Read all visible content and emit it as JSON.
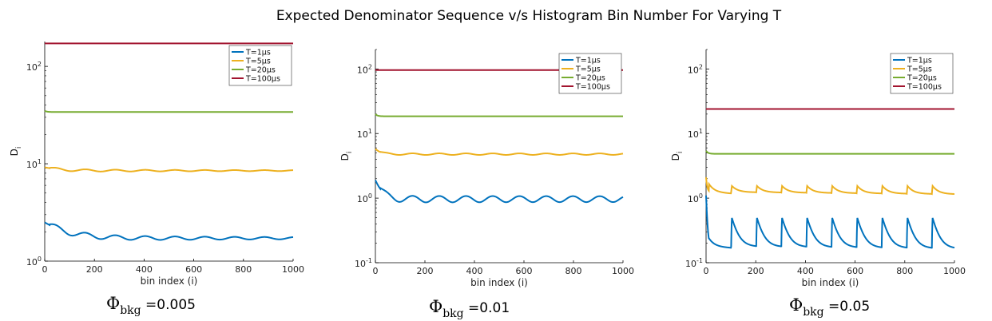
{
  "figure_title": "Expected Denominator Sequence v/s Histogram Bin Number For Varying T",
  "colors": {
    "T1": "#0072BD",
    "T5": "#EDB120",
    "T20": "#77AC30",
    "T100": "#A2142F"
  },
  "chart_data": [
    {
      "type": "line",
      "title": "",
      "xlabel": "bin index (i)",
      "ylabel": "D",
      "ylabel_sub": "i",
      "yscale": "log",
      "xlim": [
        0,
        1000
      ],
      "ylim": [
        1,
        180
      ],
      "xticks": [
        "0",
        "200",
        "400",
        "600",
        "800",
        "1000"
      ],
      "yticks": [
        {
          "base": "10",
          "exp": "0",
          "value": 1
        },
        {
          "base": "10",
          "exp": "1",
          "value": 10
        },
        {
          "base": "10",
          "exp": "2",
          "value": 100
        }
      ],
      "legend_position": "top-right",
      "caption": {
        "phi": "Φ",
        "sub": "bkg",
        "value": " =0.005"
      },
      "series": [
        {
          "name": "T=1μs",
          "color_key": "T1",
          "kind": "damped",
          "base": 1.72,
          "start": 2.5,
          "decay": 90,
          "amp": 0.06,
          "period": 120
        },
        {
          "name": "T=5μs",
          "color_key": "T5",
          "kind": "damped",
          "base": 8.5,
          "start": 9.2,
          "decay": 60,
          "amp": 0.025,
          "period": 120
        },
        {
          "name": "T=20μs",
          "color_key": "T20",
          "kind": "flat",
          "base": 34,
          "start": 35
        },
        {
          "name": "T=100μs",
          "color_key": "T100",
          "kind": "flat",
          "base": 172,
          "start": 172
        }
      ]
    },
    {
      "type": "line",
      "title": "",
      "xlabel": "bin index (i)",
      "ylabel": "D",
      "ylabel_sub": "i",
      "yscale": "log",
      "xlim": [
        0,
        1000
      ],
      "ylim": [
        0.1,
        200
      ],
      "xticks": [
        "0",
        "200",
        "400",
        "600",
        "800",
        "1000"
      ],
      "yticks": [
        {
          "base": "10",
          "exp": "-1",
          "value": 0.1
        },
        {
          "base": "10",
          "exp": "0",
          "value": 1
        },
        {
          "base": "10",
          "exp": "1",
          "value": 10
        },
        {
          "base": "10",
          "exp": "2",
          "value": 100
        }
      ],
      "legend_position": "top-right",
      "caption": {
        "phi": "Φ",
        "sub": "bkg",
        "value": " =0.01"
      },
      "series": [
        {
          "name": "T=1μs",
          "color_key": "T1",
          "kind": "wave",
          "base": 0.97,
          "start": 1.9,
          "decay": 25,
          "amp": 0.12,
          "period": 108
        },
        {
          "name": "T=5μs",
          "color_key": "T5",
          "kind": "wave",
          "base": 4.8,
          "start": 5.8,
          "decay": 20,
          "amp": 0.03,
          "period": 108
        },
        {
          "name": "T=20μs",
          "color_key": "T20",
          "kind": "flat",
          "base": 18.5,
          "start": 20
        },
        {
          "name": "T=100μs",
          "color_key": "T100",
          "kind": "flat",
          "base": 96,
          "start": 96
        }
      ]
    },
    {
      "type": "line",
      "title": "",
      "xlabel": "bin index (i)",
      "ylabel": "D",
      "ylabel_sub": "i",
      "yscale": "log",
      "xlim": [
        0,
        1000
      ],
      "ylim": [
        0.1,
        200
      ],
      "xticks": [
        "0",
        "200",
        "400",
        "600",
        "800",
        "1000"
      ],
      "yticks": [
        {
          "base": "10",
          "exp": "-1",
          "value": 0.1
        },
        {
          "base": "10",
          "exp": "0",
          "value": 1
        },
        {
          "base": "10",
          "exp": "1",
          "value": 10
        },
        {
          "base": "10",
          "exp": "2",
          "value": 100
        }
      ],
      "legend_position": "top-right",
      "caption": {
        "phi": "Φ",
        "sub": "bkg",
        "value": " =0.05"
      },
      "series": [
        {
          "name": "T=1μs",
          "color_key": "T1",
          "kind": "saw",
          "peak": 0.5,
          "low": 0.18,
          "end_low": 0.165,
          "period": 101,
          "start": 1.1
        },
        {
          "name": "T=5μs",
          "color_key": "T5",
          "kind": "saw",
          "peak": 1.55,
          "low": 1.25,
          "end_low": 1.15,
          "period": 101,
          "start": 2.1
        },
        {
          "name": "T=20μs",
          "color_key": "T20",
          "kind": "flat",
          "base": 4.85,
          "start": 5.4
        },
        {
          "name": "T=100μs",
          "color_key": "T100",
          "kind": "flat",
          "base": 24,
          "start": 24
        }
      ]
    }
  ]
}
